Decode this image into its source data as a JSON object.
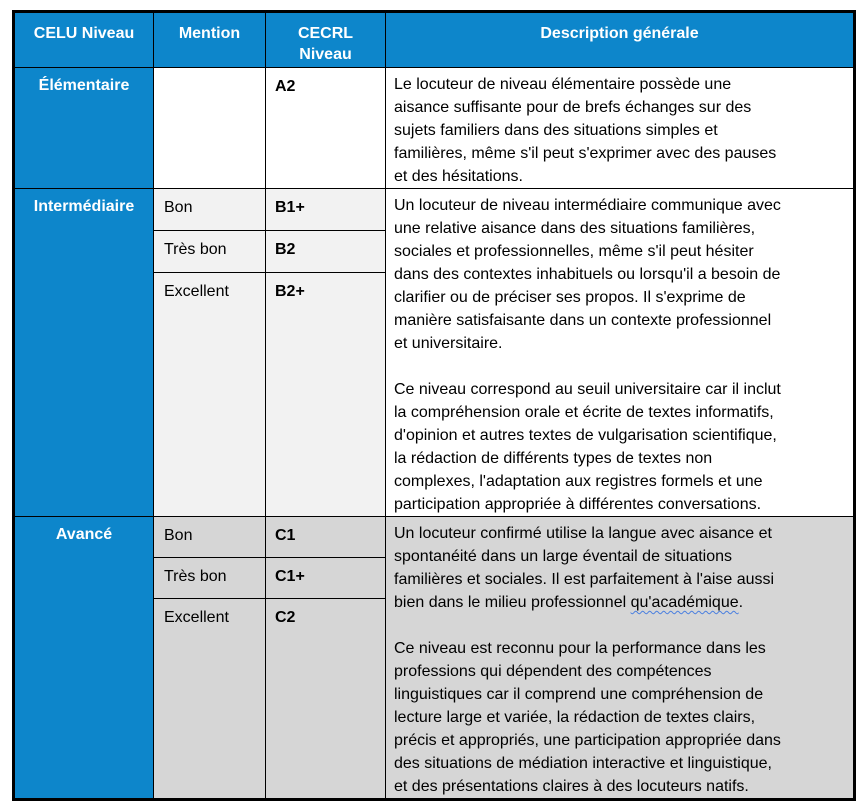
{
  "colors": {
    "header_blue": "#0d86cb",
    "light_gray": "#f2f2f2",
    "dark_gray": "#d6d6d6",
    "border_black": "#000000",
    "squiggle_blue": "#4a7fe0",
    "header_text": "#ffffff"
  },
  "table": {
    "headers": [
      "CELU Niveau",
      "Mention",
      "CECRL\nNiveau",
      "Description générale"
    ],
    "rows": [
      {
        "celu": "Élémentaire",
        "mentions": [
          {
            "mention": "",
            "cecrl": "A2"
          }
        ],
        "paragraphs": [
          "Le locuteur de niveau élémentaire possède une\naisance suffisante pour de brefs échanges sur des\nsujets familiers dans des situations simples et\nfamilières, même s'il peut s'exprimer avec des pauses\net des hésitations."
        ]
      },
      {
        "celu": "Intermédiaire",
        "mentions": [
          {
            "mention": "Bon",
            "cecrl": "B1+"
          },
          {
            "mention": "Très bon",
            "cecrl": "B2"
          },
          {
            "mention": "Excellent",
            "cecrl": "B2+"
          }
        ],
        "paragraphs": [
          "Un locuteur de niveau intermédiaire communique avec\nune relative aisance dans des situations familières,\nsociales et professionnelles, même s'il peut hésiter\ndans des contextes inhabituels ou lorsqu'il a besoin de\nclarifier ou de préciser ses propos. Il s'exprime de\nmanière satisfaisante dans un contexte professionnel\net universitaire.",
          "Ce niveau correspond au seuil universitaire car il inclut\nla compréhension orale et écrite de textes informatifs,\nd'opinion et autres textes de vulgarisation scientifique,\nla rédaction de différents types de textes non\ncomplexes, l'adaptation aux registres formels et une\nparticipation appropriée à différentes conversations."
        ]
      },
      {
        "celu": "Avancé",
        "mentions": [
          {
            "mention": "Bon",
            "cecrl": "C1"
          },
          {
            "mention": "Très bon",
            "cecrl": "C1+"
          },
          {
            "mention": "Excellent",
            "cecrl": "C2"
          }
        ],
        "p1_before": "Un locuteur confirmé utilise la langue avec aisance et\nspontanéité dans un large éventail de situations\nfamilières et sociales. Il est parfaitement à l'aise aussi\nbien dans le milieu professionnel ",
        "p1_misspelled": "qu'académique",
        "p1_after": ".",
        "p2": "Ce niveau est reconnu pour la performance dans les\nprofessions qui dépendent des compétences\nlinguistiques car il comprend une compréhension de\nlecture large et variée, la rédaction de textes clairs,\nprécis et appropriés, une participation appropriée dans\ndes situations de médiation interactive et linguistique,\net des présentations claires à des locuteurs natifs."
      }
    ]
  }
}
